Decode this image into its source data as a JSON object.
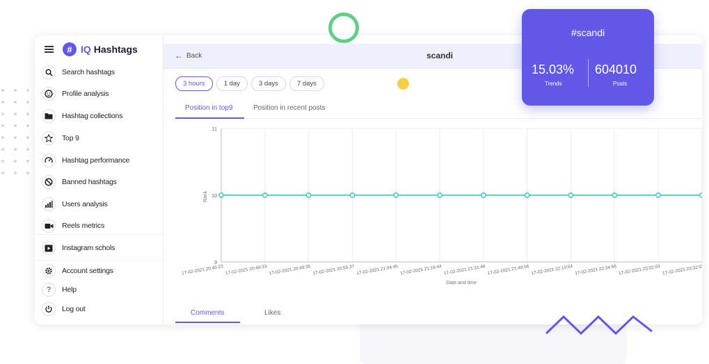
{
  "app": {
    "logo_letter": "#",
    "logo_iq": "IQ",
    "logo_name": "Hashtags"
  },
  "sidebar": {
    "items": [
      {
        "label": "Search hashtags",
        "icon": "search-icon"
      },
      {
        "label": "Profile analysis",
        "icon": "face-icon"
      },
      {
        "label": "Hashtag collections",
        "icon": "folder-icon"
      },
      {
        "label": "Top 9",
        "icon": "star-icon"
      },
      {
        "label": "Hashtag performance",
        "icon": "gauge-icon"
      },
      {
        "label": "Banned hashtags",
        "icon": "ban-icon"
      },
      {
        "label": "Users analysis",
        "icon": "bar-chart-icon"
      },
      {
        "label": "Reels metrics",
        "icon": "video-icon"
      },
      {
        "label": "Instagram schols",
        "icon": "play-icon"
      },
      {
        "label": "Account settings",
        "icon": "gear-icon"
      },
      {
        "label": "Help",
        "icon": "question-icon"
      },
      {
        "label": "Log out",
        "icon": "power-icon"
      }
    ]
  },
  "header": {
    "back_label": "Back",
    "title": "scandi"
  },
  "ranges": {
    "options": [
      "3 hours",
      "1 day",
      "3 days",
      "7 days"
    ],
    "selected": "3 hours"
  },
  "tabs": {
    "items": [
      "Position in top9",
      "Position in recent posts"
    ],
    "active": "Position in top9"
  },
  "chart_data": {
    "type": "line",
    "xlabel": "Date and time",
    "ylabel": "Rank",
    "ylim": [
      9,
      11
    ],
    "y_ticks": [
      9,
      10,
      11
    ],
    "x": [
      "17-02-2021 20:45:23",
      "17-02-2021 20:46:33",
      "17-02-2021 20:49:35",
      "17-02-2021 20:55:37",
      "17-02-2021 21:04:45",
      "17-02-2021 21:16:44",
      "17-02-2021 21:31:46",
      "17-02-2021 21:49:56",
      "17-02-2021 22:10:54",
      "17-02-2021 22:34:56",
      "17-02-2021 23:02:03",
      "17-02-2021 23:32:02"
    ],
    "series": [
      {
        "values": [
          10,
          10,
          10,
          10,
          10,
          10,
          10,
          10,
          10,
          10,
          10,
          10
        ],
        "color": "#26c6c6"
      }
    ],
    "grid": true
  },
  "bottom_tabs": {
    "items": [
      "Comments",
      "Likes"
    ],
    "active": "Comments"
  },
  "stats_card": {
    "title": "#scandi",
    "trends_value": "15.03%",
    "trends_label": "Trends",
    "posts_value": "604010",
    "posts_label": "Posts"
  },
  "colors": {
    "accent": "#6258e8",
    "line": "#26c6c6",
    "ring": "#5fcf86",
    "dot": "#f6cf4a"
  }
}
